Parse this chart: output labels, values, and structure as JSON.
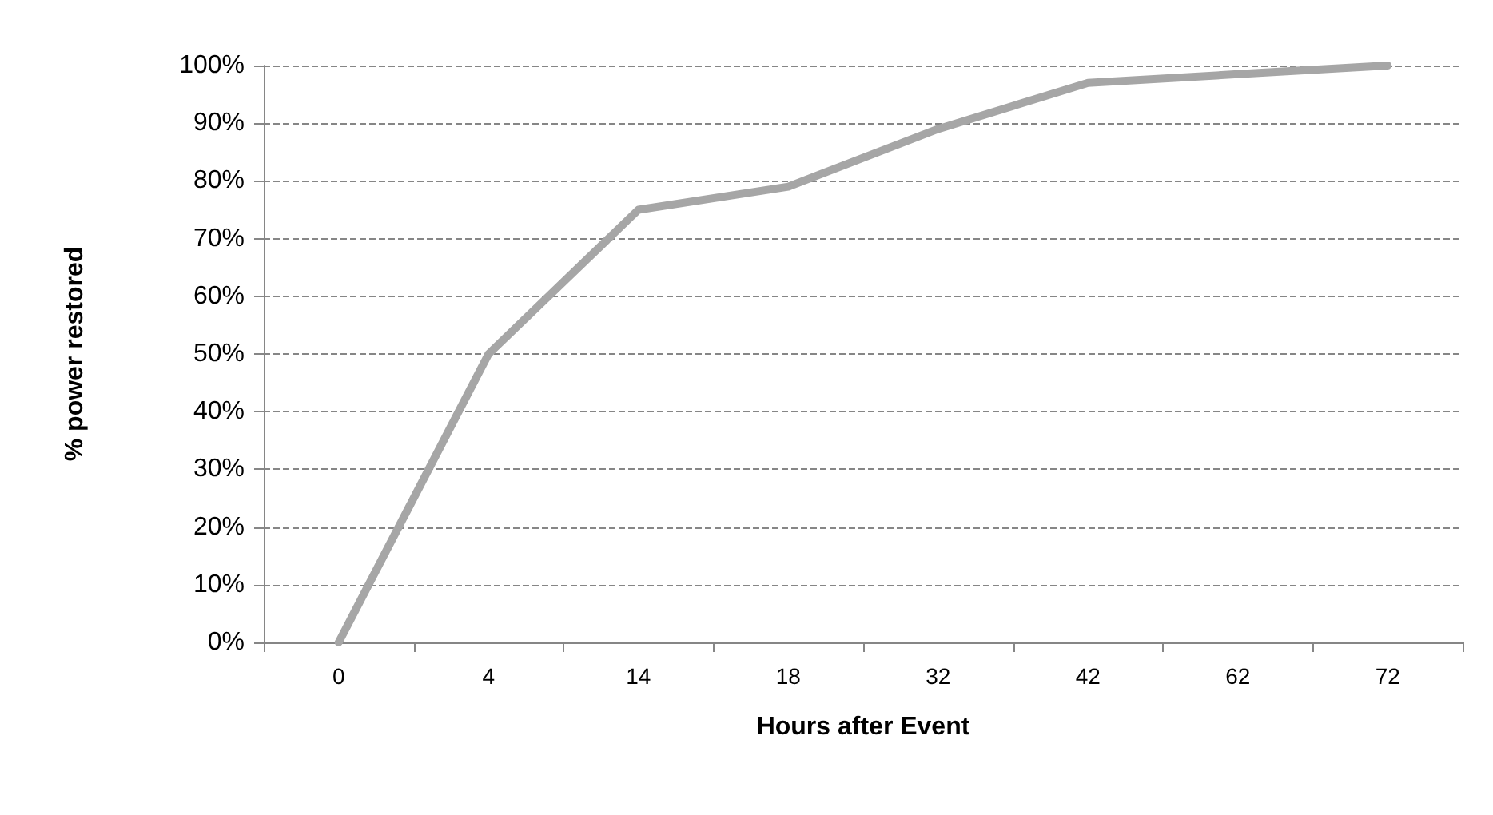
{
  "chart_data": {
    "type": "line",
    "xlabel": "Hours after Event",
    "ylabel": "% power restored",
    "categories": [
      "0",
      "4",
      "14",
      "18",
      "32",
      "42",
      "62",
      "72"
    ],
    "series": [
      {
        "color": "#a6a6a6",
        "values": [
          0,
          50,
          75,
          79,
          89,
          97,
          98.5,
          100
        ]
      }
    ],
    "ylim": [
      0,
      100
    ],
    "yticks": [
      {
        "value": 0,
        "label": "0%"
      },
      {
        "value": 10,
        "label": "10%"
      },
      {
        "value": 20,
        "label": "20%"
      },
      {
        "value": 30,
        "label": "30%"
      },
      {
        "value": 40,
        "label": "40%"
      },
      {
        "value": 50,
        "label": "50%"
      },
      {
        "value": 60,
        "label": "60%"
      },
      {
        "value": 70,
        "label": "70%"
      },
      {
        "value": 80,
        "label": "80%"
      },
      {
        "value": 90,
        "label": "90%"
      },
      {
        "value": 100,
        "label": "100%"
      }
    ],
    "grid": "y",
    "marker": "none",
    "line_style": "solid"
  }
}
